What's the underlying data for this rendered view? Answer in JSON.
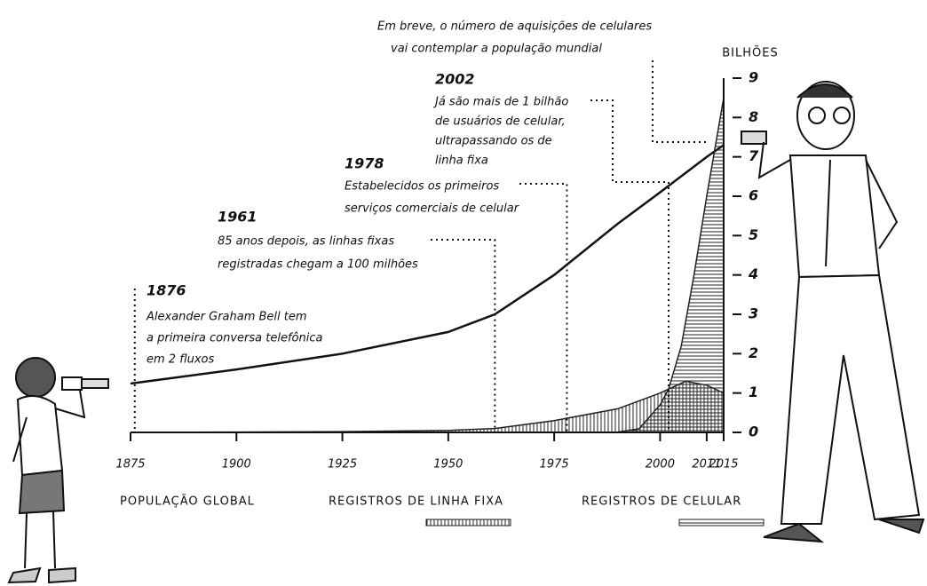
{
  "chart_data": {
    "type": "area",
    "title": [
      "Em breve, o número de aquisições de celulares",
      "vai contemplar a população mundial"
    ],
    "y_label": "BILHÕES",
    "xlim": [
      1875,
      2015
    ],
    "xticks": [
      1875,
      1900,
      1925,
      1950,
      1975,
      2000,
      2011,
      2015
    ],
    "ylim": [
      0,
      9
    ],
    "yticks": [
      0,
      1,
      2,
      3,
      4,
      5,
      6,
      7,
      8,
      9
    ],
    "series": [
      {
        "name": "POPULAÇÃO GLOBAL",
        "color": "#111111",
        "style": "line",
        "x": [
          1875,
          1900,
          1925,
          1950,
          1961,
          1975,
          1990,
          2000,
          2011,
          2015
        ],
        "values": [
          1.24,
          1.6,
          2.0,
          2.55,
          3.0,
          4.0,
          5.3,
          6.1,
          7.0,
          7.3
        ]
      },
      {
        "name": "REGISTROS DE LINHA FIXA",
        "color": "#222222",
        "style": "vhatch",
        "x": [
          1876,
          1900,
          1925,
          1950,
          1961,
          1975,
          1990,
          2000,
          2006,
          2011,
          2015
        ],
        "values": [
          0,
          0.01,
          0.02,
          0.05,
          0.1,
          0.3,
          0.6,
          1.0,
          1.3,
          1.2,
          1.0
        ]
      },
      {
        "name": "REGISTROS DE CELULAR",
        "color": "#222222",
        "style": "hhatch",
        "x": [
          1978,
          1990,
          1995,
          2000,
          2002,
          2005,
          2008,
          2011,
          2015
        ],
        "values": [
          0,
          0.01,
          0.09,
          0.7,
          1.1,
          2.2,
          4.0,
          6.0,
          8.5
        ]
      }
    ],
    "annotations": [
      {
        "x": 1876,
        "text": [
          "Alexander Graham Bell tem",
          "a primeira conversa telefônica",
          "em 2 fluxos"
        ]
      },
      {
        "x": 1961,
        "text": [
          "85 anos depois, as linhas fixas",
          "registradas chegam a 100 milhões"
        ]
      },
      {
        "x": 1978,
        "text": [
          "Estabelecidos os primeiros",
          "serviços comerciais de celular"
        ]
      },
      {
        "x": 2002,
        "text": [
          "Já são mais de 1 bilhão",
          "de usuários de celular,",
          "ultrapassando os de",
          "linha fixa"
        ]
      }
    ]
  }
}
